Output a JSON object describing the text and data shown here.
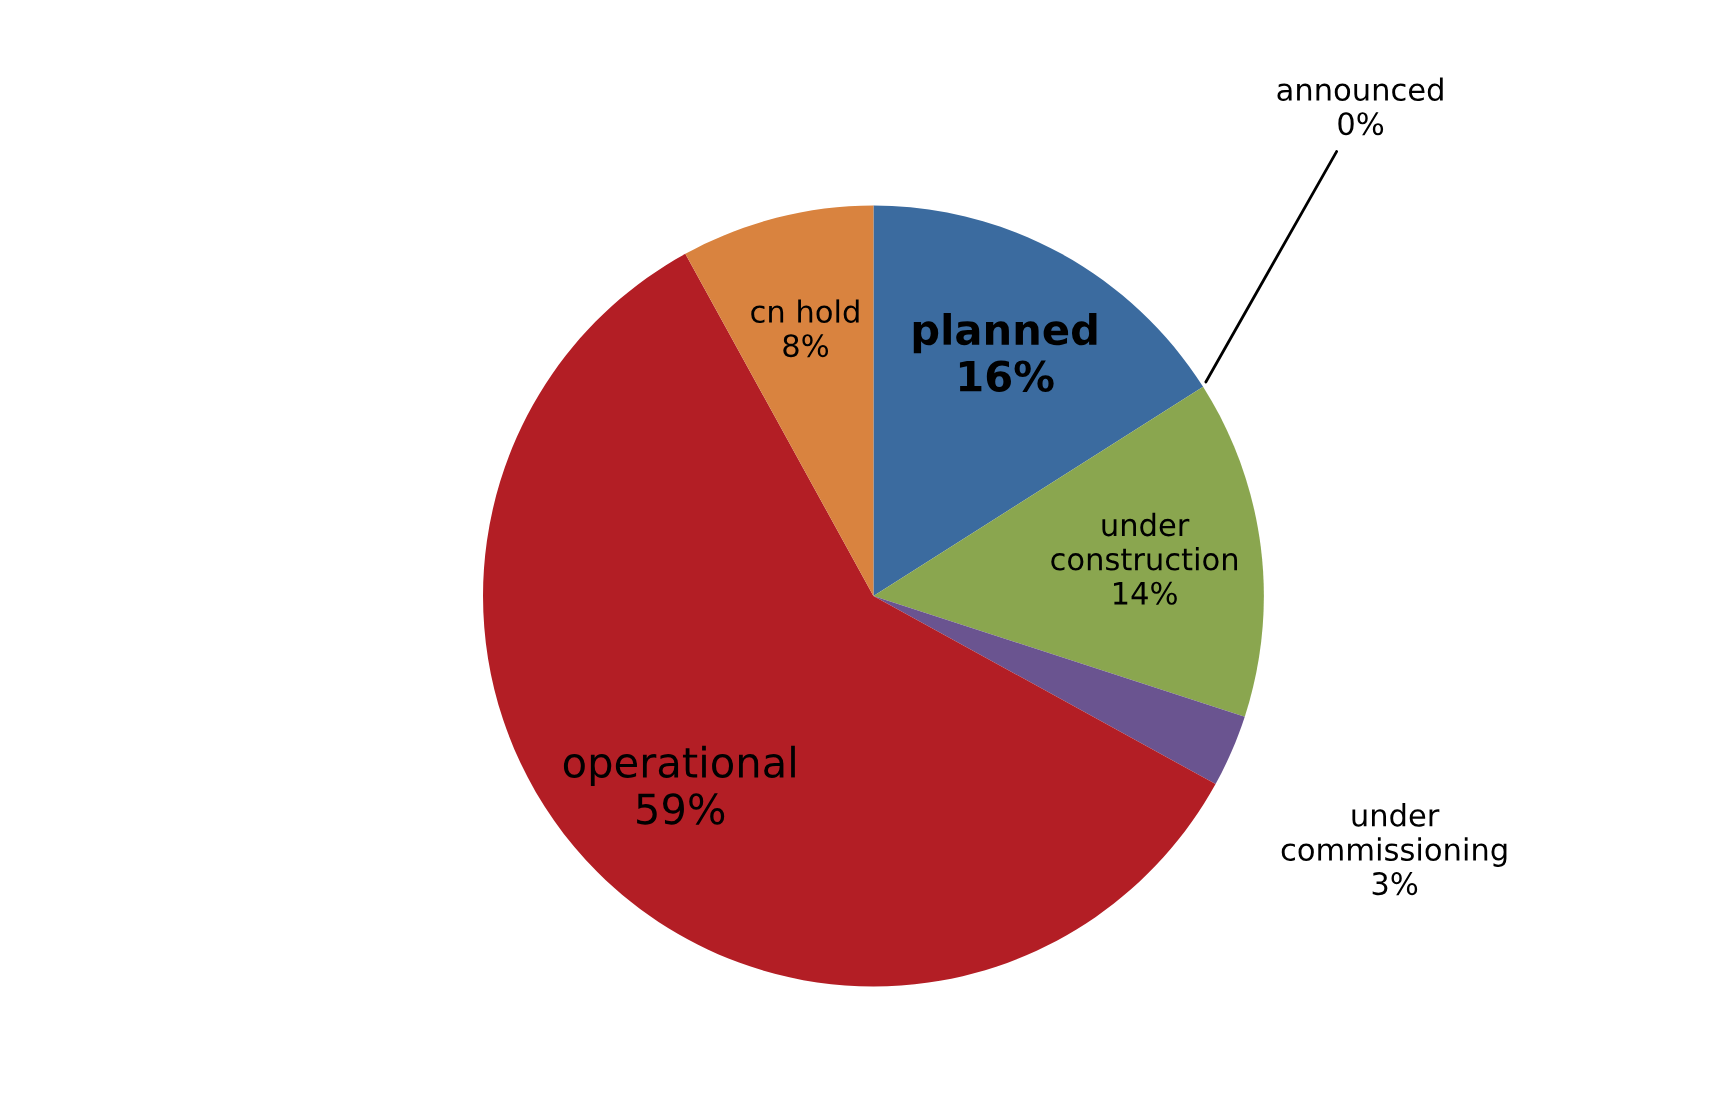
{
  "chart_data": {
    "type": "pie",
    "categories": [
      "planned",
      "announced",
      "under construction",
      "under commissioning",
      "operational",
      "cn hold"
    ],
    "values": [
      16,
      0,
      14,
      3,
      59,
      8
    ],
    "colors": [
      "#3b6b9f",
      "#bd4f4b",
      "#8aa64f",
      "#6a5490",
      "#b31e25",
      "#d9833f"
    ],
    "value_labels": [
      "16%",
      "0%",
      "14%",
      "3%",
      "59%",
      "8%"
    ]
  }
}
